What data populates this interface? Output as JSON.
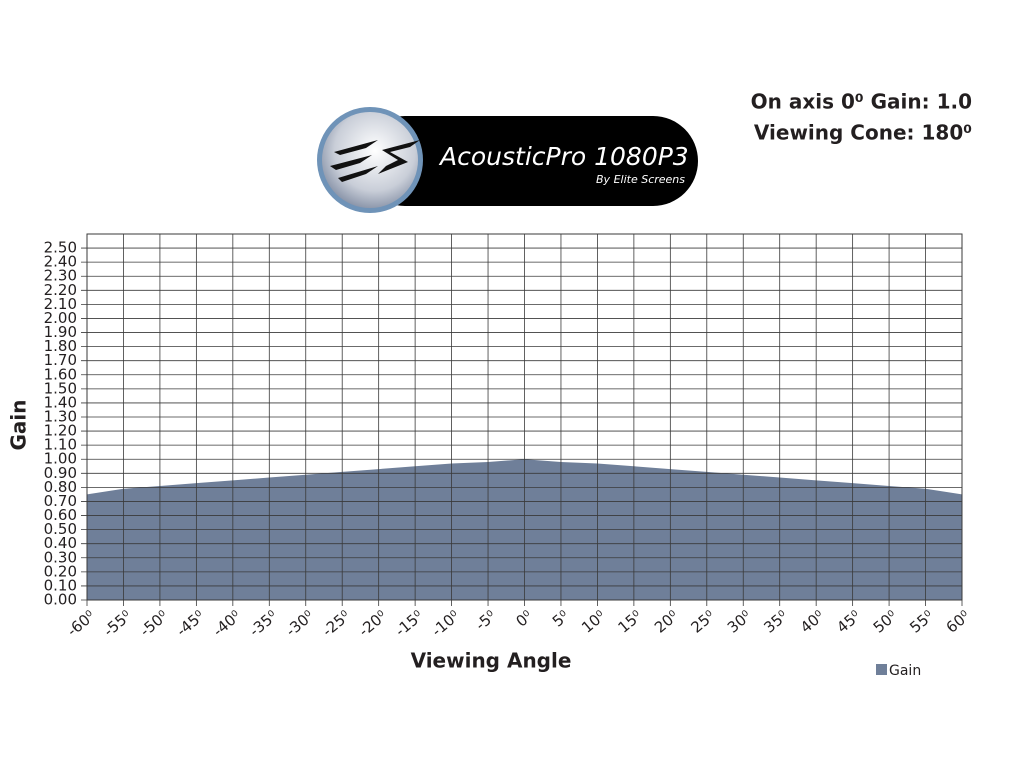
{
  "chart_data": {
    "type": "area",
    "logo": {
      "brand": "AcousticPro 1080P3",
      "tagline": "By Elite Screens"
    },
    "annotations": [
      "On axis 0⁰ Gain: 1.0",
      "Viewing Cone: 180⁰"
    ],
    "x_label": "Viewing Angle",
    "y_label": "Gain",
    "x": [
      -60,
      -55,
      -50,
      -45,
      -40,
      -35,
      -30,
      -25,
      -20,
      -15,
      -10,
      -5,
      0,
      5,
      10,
      15,
      20,
      25,
      30,
      35,
      40,
      45,
      50,
      55,
      60
    ],
    "series": [
      {
        "name": "Gain",
        "color": "#6f7f99",
        "values": [
          0.75,
          0.79,
          0.81,
          0.83,
          0.85,
          0.87,
          0.89,
          0.91,
          0.93,
          0.95,
          0.97,
          0.98,
          1.0,
          0.98,
          0.97,
          0.95,
          0.93,
          0.91,
          0.89,
          0.87,
          0.85,
          0.83,
          0.81,
          0.79,
          0.75
        ]
      }
    ],
    "xlim": [
      -60,
      60
    ],
    "xticks": [
      {
        "value": -60,
        "label": "-60⁰"
      },
      {
        "value": -55,
        "label": "-55⁰"
      },
      {
        "value": -50,
        "label": "-50⁰"
      },
      {
        "value": -45,
        "label": "-45⁰"
      },
      {
        "value": -40,
        "label": "-40⁰"
      },
      {
        "value": -35,
        "label": "-35⁰"
      },
      {
        "value": -30,
        "label": "-30⁰"
      },
      {
        "value": -25,
        "label": "-25⁰"
      },
      {
        "value": -20,
        "label": "-20⁰"
      },
      {
        "value": -15,
        "label": "-15⁰"
      },
      {
        "value": -10,
        "label": "-10⁰"
      },
      {
        "value": -5,
        "label": "-5⁰"
      },
      {
        "value": 0,
        "label": "0⁰"
      },
      {
        "value": 5,
        "label": "5⁰"
      },
      {
        "value": 10,
        "label": "10⁰"
      },
      {
        "value": 15,
        "label": "15⁰"
      },
      {
        "value": 20,
        "label": "20⁰"
      },
      {
        "value": 25,
        "label": "25⁰"
      },
      {
        "value": 30,
        "label": "30⁰"
      },
      {
        "value": 35,
        "label": "35⁰"
      },
      {
        "value": 40,
        "label": "40⁰"
      },
      {
        "value": 45,
        "label": "45⁰"
      },
      {
        "value": 50,
        "label": "50⁰"
      },
      {
        "value": 55,
        "label": "55⁰"
      },
      {
        "value": 60,
        "label": "60⁰"
      }
    ],
    "ylim": [
      0,
      2.6
    ],
    "yticks": [
      {
        "value": 0,
        "label": "0.00"
      },
      {
        "value": 0.1,
        "label": "0.10"
      },
      {
        "value": 0.2,
        "label": "0.20"
      },
      {
        "value": 0.3,
        "label": "0.30"
      },
      {
        "value": 0.4,
        "label": "0.40"
      },
      {
        "value": 0.5,
        "label": "0.50"
      },
      {
        "value": 0.6,
        "label": "0.60"
      },
      {
        "value": 0.7,
        "label": "0.70"
      },
      {
        "value": 0.8,
        "label": "0.80"
      },
      {
        "value": 0.9,
        "label": "0.90"
      },
      {
        "value": 1,
        "label": "1.00"
      },
      {
        "value": 1.1,
        "label": "1.10"
      },
      {
        "value": 1.2,
        "label": "1.20"
      },
      {
        "value": 1.3,
        "label": "1.30"
      },
      {
        "value": 1.4,
        "label": "1.40"
      },
      {
        "value": 1.5,
        "label": "1.50"
      },
      {
        "value": 1.6,
        "label": "1.60"
      },
      {
        "value": 1.7,
        "label": "1.70"
      },
      {
        "value": 1.8,
        "label": "1.80"
      },
      {
        "value": 1.9,
        "label": "1.90"
      },
      {
        "value": 2,
        "label": "2.00"
      },
      {
        "value": 2.1,
        "label": "2.10"
      },
      {
        "value": 2.2,
        "label": "2.20"
      },
      {
        "value": 2.3,
        "label": "2.30"
      },
      {
        "value": 2.4,
        "label": "2.40"
      },
      {
        "value": 2.5,
        "label": "2.50"
      }
    ],
    "grid": true,
    "legend": "bottom-right"
  }
}
